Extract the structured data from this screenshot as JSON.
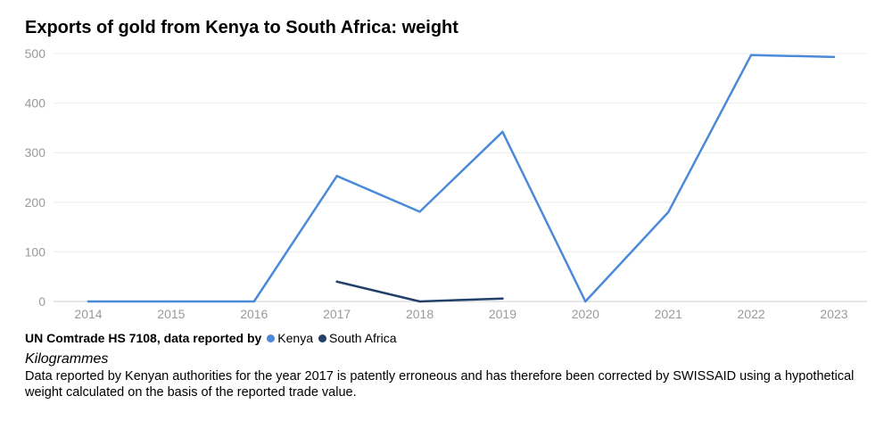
{
  "title": "Exports of gold from Kenya to South Africa: weight",
  "legend": {
    "source_label": "UN Comtrade HS 7108, data reported by"
  },
  "unit_label": "Kilogrammes",
  "note": "Data reported by Kenyan authorities for the year 2017 is patently erroneous and has therefore been corrected by SWISSAID using a hypothetical weight calculated on the basis of the reported trade value.",
  "colors": {
    "kenya": "#4a8ad8",
    "south_africa": "#22406a",
    "grid": "#ececec",
    "axis": "#cccccc"
  },
  "chart_data": {
    "type": "line",
    "x": [
      2014,
      2015,
      2016,
      2017,
      2018,
      2019,
      2020,
      2021,
      2022,
      2023
    ],
    "ylim": [
      0,
      500
    ],
    "yticks": [
      0,
      100,
      200,
      300,
      400,
      500
    ],
    "grid": true,
    "legend_position": "bottom-left",
    "series": [
      {
        "name": "Kenya",
        "color": "#4a8ad8",
        "values": [
          0,
          0,
          0,
          253,
          181,
          342,
          0,
          180,
          497,
          493
        ]
      },
      {
        "name": "South Africa",
        "color": "#22406a",
        "values": [
          null,
          null,
          null,
          40,
          0,
          6,
          null,
          null,
          null,
          null
        ]
      }
    ]
  }
}
